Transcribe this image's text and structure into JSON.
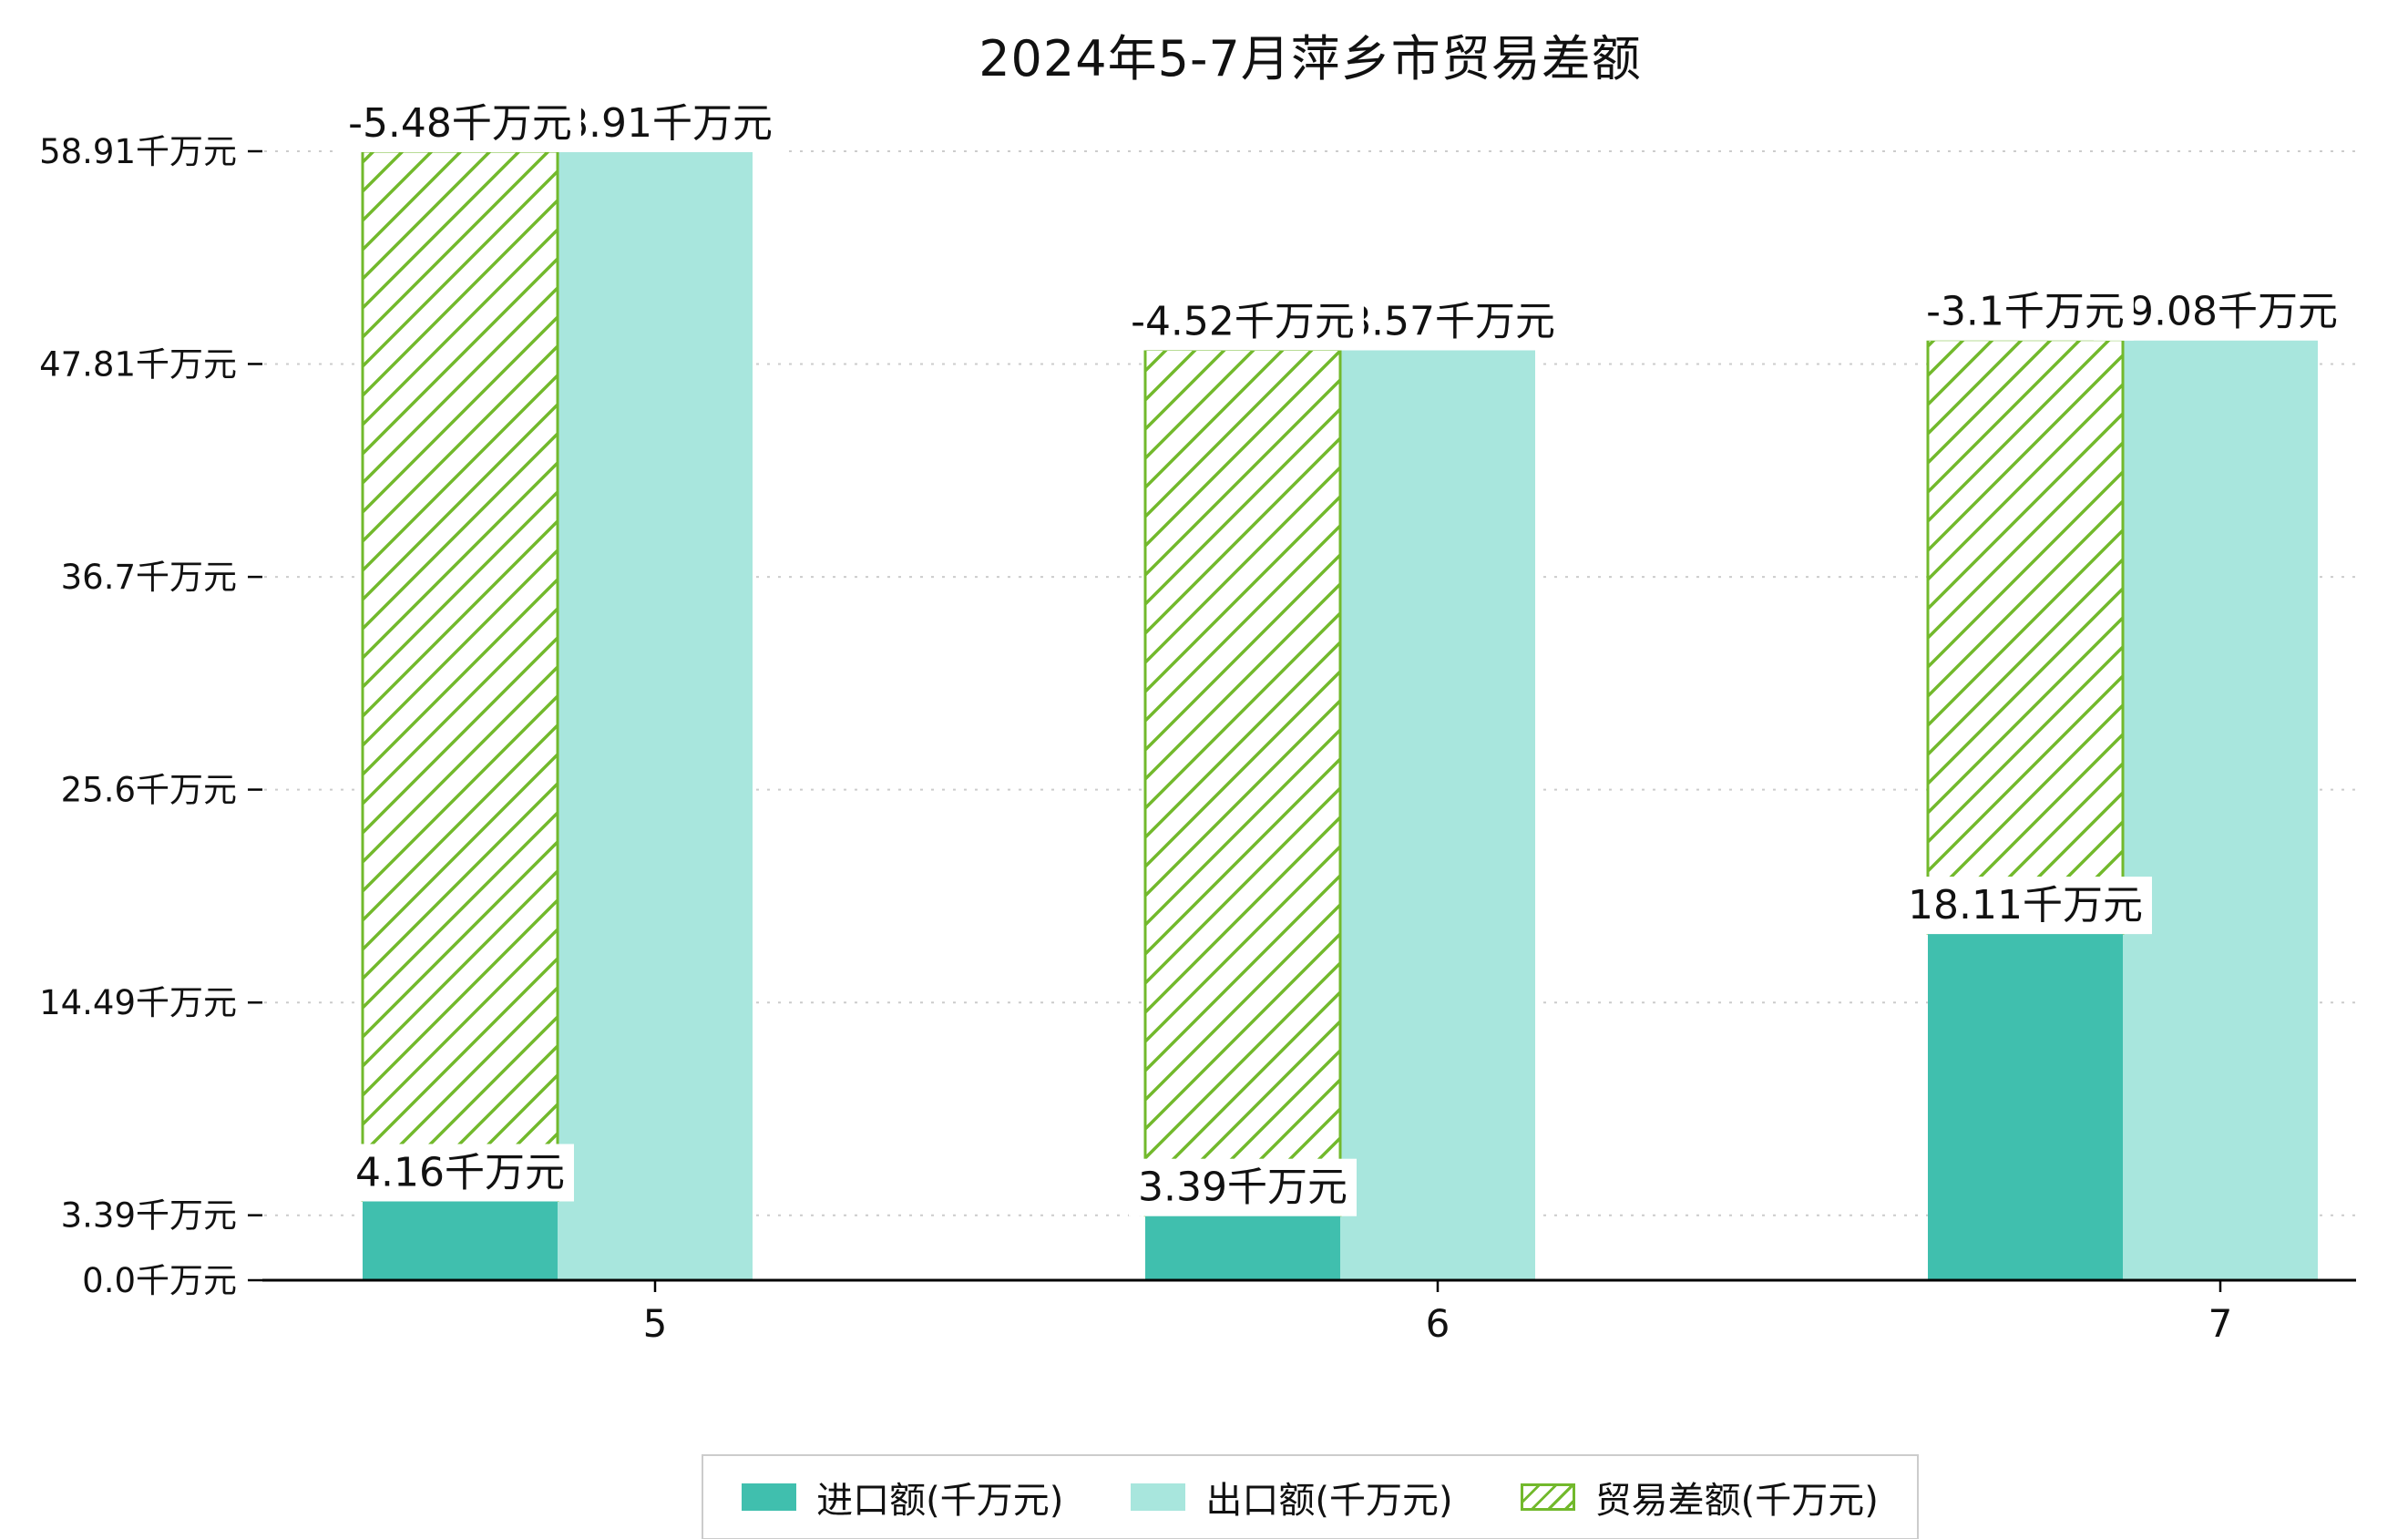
{
  "title": "2024年5-7月萍乡市贸易差额",
  "chart_data": {
    "type": "bar",
    "title": "2024年5-7月萍乡市贸易差额",
    "unit": "千万元",
    "categories": [
      "5",
      "6",
      "7"
    ],
    "series": [
      {
        "name": "进口额(千万元)",
        "style": "solid",
        "color": "#40bfae",
        "values": [
          4.16,
          3.39,
          18.11
        ],
        "labels": [
          "4.16千万元",
          "3.39千万元",
          "18.11千万元"
        ]
      },
      {
        "name": "出口额(千万元)",
        "style": "solid",
        "color": "#a8e6dd",
        "values": [
          58.91,
          48.57,
          49.08
        ],
        "labels": [
          "58.91千万元",
          "48.57千万元",
          "49.08千万元"
        ]
      },
      {
        "name": "贸易差额(千万元)",
        "style": "hatched",
        "color": "#72b92c",
        "values": [
          -5.48,
          -4.52,
          -3.1
        ],
        "labels": [
          "-5.48千万元",
          "-4.52千万元",
          "-3.1千万元"
        ],
        "bar_span": "from_import_value_to_export_value"
      }
    ],
    "y_ticks": [
      {
        "value": 0.0,
        "label": "0.0千万元"
      },
      {
        "value": 3.39,
        "label": "3.39千万元"
      },
      {
        "value": 14.49,
        "label": "14.49千万元"
      },
      {
        "value": 25.6,
        "label": "25.6千万元"
      },
      {
        "value": 36.7,
        "label": "36.7千万元"
      },
      {
        "value": 47.81,
        "label": "47.81千万元"
      },
      {
        "value": 58.91,
        "label": "58.91千万元"
      }
    ],
    "ylim": [
      0,
      58.91
    ],
    "xlabel": "",
    "ylabel": "",
    "grid": "horizontal-dashed",
    "grid_color": "#cccccc",
    "axis_color": "#000000",
    "legend_position": "bottom-center"
  }
}
